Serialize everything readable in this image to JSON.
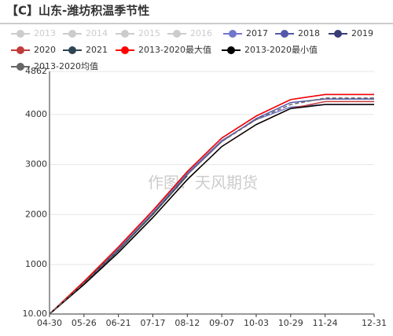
{
  "chart_data": {
    "type": "line",
    "title": "【C】山东-潍坊积温季节性",
    "watermark": "作图：天风期货",
    "x": [
      "04-30",
      "05-26",
      "06-21",
      "07-17",
      "08-12",
      "09-07",
      "10-03",
      "10-29",
      "11-24",
      "12-31"
    ],
    "xticks": [
      "04-30",
      "05-26",
      "06-21",
      "07-17",
      "08-12",
      "09-07",
      "10-03",
      "10-29",
      "11-24",
      "12-31"
    ],
    "ylim": [
      10,
      4862
    ],
    "yticks": [
      {
        "value": 10,
        "label": "10.00"
      },
      1000,
      2000,
      3000,
      4000,
      4862
    ],
    "grid": true,
    "series": [
      {
        "name": "2013",
        "color": "#cccccc",
        "visible": false
      },
      {
        "name": "2014",
        "color": "#cccccc",
        "visible": false
      },
      {
        "name": "2015",
        "color": "#cccccc",
        "visible": false
      },
      {
        "name": "2016",
        "color": "#cccccc",
        "visible": false
      },
      {
        "name": "2017",
        "color": "#7277cc",
        "visible": true,
        "values": [
          10,
          650,
          1320,
          2040,
          2830,
          3480,
          3900,
          4150,
          4200,
          4200
        ]
      },
      {
        "name": "2018",
        "color": "#5558a8",
        "visible": true,
        "values": [
          10,
          620,
          1280,
          2010,
          2800,
          3460,
          3920,
          4240,
          4310,
          4310
        ]
      },
      {
        "name": "2019",
        "color": "#3a3c78",
        "visible": true,
        "values": [
          10,
          660,
          1350,
          2080,
          2860,
          3530,
          3970,
          4300,
          4400,
          4400
        ]
      },
      {
        "name": "2020",
        "color": "#c23b3b",
        "visible": true,
        "values": [
          10,
          600,
          1240,
          1940,
          2700,
          3360,
          3800,
          4120,
          4260,
          4260
        ]
      },
      {
        "name": "2021",
        "color": "#2f4554",
        "visible": true,
        "values": [
          10,
          640,
          1290,
          2000,
          2780,
          null,
          null,
          null,
          null,
          null
        ]
      },
      {
        "name": "2013-2020最大值",
        "color": "#ff0000",
        "visible": true,
        "values": [
          10,
          660,
          1350,
          2080,
          2860,
          3530,
          3970,
          4300,
          4400,
          4400
        ]
      },
      {
        "name": "2013-2020最小值",
        "color": "#000000",
        "visible": true,
        "values": [
          10,
          600,
          1240,
          1940,
          2700,
          3360,
          3800,
          4120,
          4200,
          4200
        ]
      },
      {
        "name": "2013-2020均值",
        "color": "#666666",
        "visible": true,
        "dashed": true,
        "values": [
          10,
          630,
          1300,
          2020,
          2800,
          3460,
          3900,
          4200,
          4330,
          4330
        ]
      }
    ]
  }
}
